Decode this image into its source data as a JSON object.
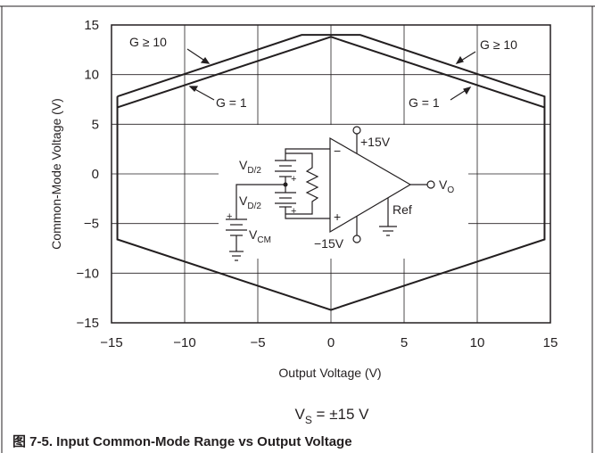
{
  "chart_data": {
    "type": "line",
    "x_label": "Output Voltage (V)",
    "y_label": "Common-Mode Voltage (V)",
    "series": [
      {
        "name": "G ≥ 10",
        "color": "#231f20",
        "x": [
          -14.6,
          -2,
          2,
          14.6,
          14.6,
          0,
          -14.6,
          -14.6
        ],
        "values": [
          7.8,
          14,
          14,
          7.8,
          -6.6,
          -13.7,
          -6.6,
          7.8
        ]
      },
      {
        "name": "G = 1",
        "color": "#231f20",
        "x": [
          -14.6,
          0,
          14.6
        ],
        "values": [
          6.7,
          13.8,
          6.7
        ]
      }
    ],
    "xlim": [
      -15,
      15
    ],
    "ylim": [
      -15,
      15
    ],
    "xticks": [
      {
        "value": -15,
        "label": "−15"
      },
      {
        "value": -10,
        "label": "−10"
      },
      {
        "value": -5,
        "label": "−5"
      },
      0,
      5,
      10,
      15
    ],
    "yticks": [
      {
        "value": -15,
        "label": "−15"
      },
      {
        "value": -10,
        "label": "−10"
      },
      {
        "value": -5,
        "label": "−5"
      },
      0,
      5,
      10,
      15
    ],
    "grid": true,
    "condition": {
      "main": "V",
      "sub": "S",
      "rest": " = ±15 V"
    },
    "caption": "图 7-5. Input Common-Mode Range vs Output Voltage",
    "circuit": {
      "supply_pos": "+15V",
      "supply_neg": "−15V",
      "ref": "Ref",
      "minus": "−",
      "plus": "+",
      "vd": {
        "main": "V",
        "sub": "D/2"
      },
      "vcm": {
        "main": "V",
        "sub": "CM"
      },
      "vo": {
        "main": "V",
        "sub": "O"
      }
    }
  }
}
